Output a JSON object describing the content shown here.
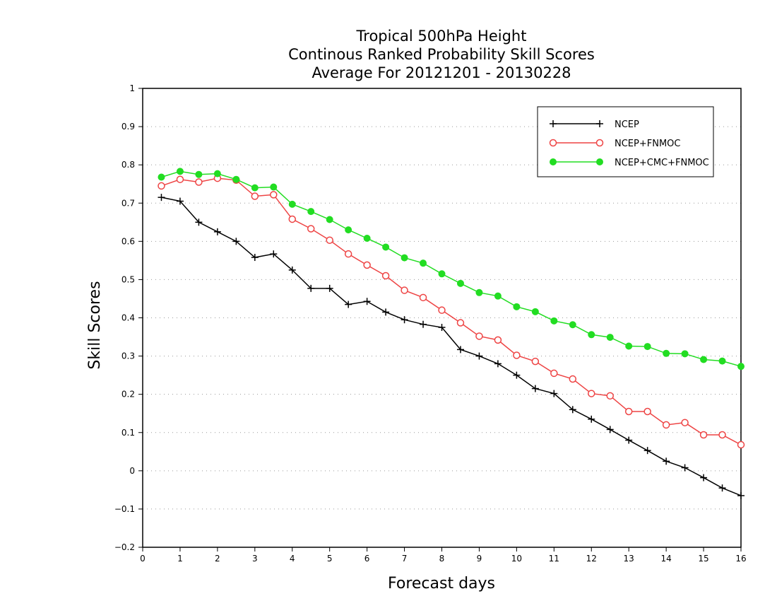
{
  "chart_data": {
    "type": "line",
    "title_lines": [
      "Tropical 500hPa Height",
      "Continous Ranked Probability Skill Scores",
      "Average For 20121201 - 20130228"
    ],
    "xlabel": "Forecast days",
    "ylabel": "Skill Scores",
    "xlim": [
      0,
      16
    ],
    "ylim": [
      -0.2,
      1
    ],
    "x_ticks": [
      "0",
      "1",
      "2",
      "3",
      "4",
      "5",
      "6",
      "7",
      "8",
      "9",
      "10",
      "11",
      "12",
      "13",
      "14",
      "15",
      "16"
    ],
    "y_ticks": [
      "−0.2",
      "−0.1",
      "0",
      "0.1",
      "0.2",
      "0.3",
      "0.4",
      "0.5",
      "0.6",
      "0.7",
      "0.8",
      "0.9",
      "1"
    ],
    "y_tick_values": [
      -0.2,
      -0.1,
      0,
      0.1,
      0.2,
      0.3,
      0.4,
      0.5,
      0.6,
      0.7,
      0.8,
      0.9,
      1
    ],
    "grid": "horizontal dotted",
    "legend_position": "top-right",
    "x": [
      0.5,
      1,
      1.5,
      2,
      2.5,
      3,
      3.5,
      4,
      4.5,
      5,
      5.5,
      6,
      6.5,
      7,
      7.5,
      8,
      8.5,
      9,
      9.5,
      10,
      10.5,
      11,
      11.5,
      12,
      12.5,
      13,
      13.5,
      14,
      14.5,
      15,
      15.5,
      16
    ],
    "series": [
      {
        "name": "NCEP",
        "color": "#000000",
        "marker": "plus",
        "values": [
          0.715,
          0.705,
          0.65,
          0.625,
          0.6,
          0.558,
          0.567,
          0.525,
          0.477,
          0.477,
          0.435,
          0.443,
          0.415,
          0.395,
          0.383,
          0.375,
          0.317,
          0.3,
          0.28,
          0.25,
          0.215,
          0.202,
          0.16,
          0.135,
          0.108,
          0.08,
          0.053,
          0.025,
          0.008,
          -0.018,
          -0.045,
          -0.065
        ]
      },
      {
        "name": "NCEP+FNMOC",
        "color": "#ee4444",
        "marker": "open-circle",
        "values": [
          0.745,
          0.762,
          0.755,
          0.765,
          0.76,
          0.718,
          0.722,
          0.658,
          0.633,
          0.603,
          0.567,
          0.538,
          0.51,
          0.472,
          0.453,
          0.42,
          0.387,
          0.352,
          0.342,
          0.302,
          0.286,
          0.255,
          0.24,
          0.202,
          0.196,
          0.155,
          0.155,
          0.12,
          0.126,
          0.094,
          0.094,
          0.068
        ]
      },
      {
        "name": "NCEP+CMC+FNMOC",
        "color": "#22dd22",
        "marker": "filled-circle",
        "values": [
          0.768,
          0.783,
          0.775,
          0.777,
          0.762,
          0.74,
          0.742,
          0.697,
          0.678,
          0.657,
          0.63,
          0.608,
          0.585,
          0.557,
          0.543,
          0.515,
          0.49,
          0.466,
          0.457,
          0.429,
          0.416,
          0.392,
          0.382,
          0.356,
          0.349,
          0.326,
          0.325,
          0.307,
          0.306,
          0.291,
          0.287,
          0.273
        ]
      }
    ]
  }
}
